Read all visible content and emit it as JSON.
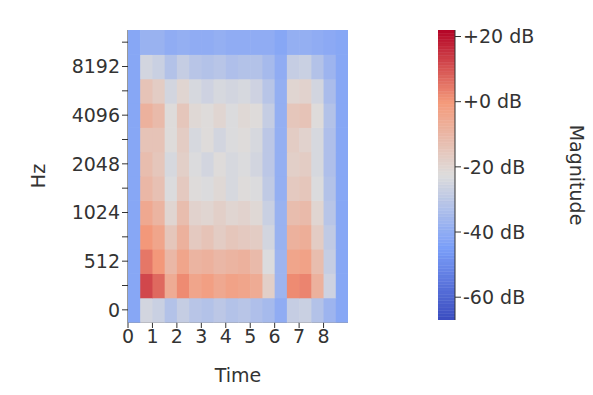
{
  "chart_data": {
    "type": "heatmap",
    "x_label": "Time",
    "y_label": "Hz",
    "x": [
      0.25,
      0.75,
      1.25,
      1.75,
      2.25,
      2.75,
      3.25,
      3.75,
      4.25,
      4.75,
      5.25,
      5.75,
      6.25,
      6.75,
      7.25,
      7.75,
      8.25,
      8.75
    ],
    "xlim": [
      0,
      9
    ],
    "xticks": [
      0,
      1,
      2,
      3,
      4,
      5,
      6,
      7,
      8
    ],
    "y_categories": [
      0,
      null,
      512,
      null,
      1024,
      null,
      2048,
      null,
      4096,
      null,
      8192,
      null
    ],
    "cells": [
      [
        -42,
        -25,
        -27,
        -32,
        -28,
        -31,
        -32,
        -30,
        -32,
        -31,
        -33,
        -35,
        -40,
        -28,
        -27,
        -32,
        -37,
        -42
      ],
      [
        -42,
        12,
        7,
        -6,
        2,
        -4,
        -2,
        -5,
        -3,
        -4,
        -6,
        -18,
        -37,
        2,
        3,
        -8,
        -26,
        -42
      ],
      [
        -42,
        5,
        0,
        -10,
        -4,
        -9,
        -8,
        -10,
        -9,
        -8,
        -11,
        -23,
        -37,
        -4,
        -3,
        -12,
        -28,
        -42
      ],
      [
        -42,
        0,
        -4,
        -15,
        -8,
        -16,
        -14,
        -17,
        -15,
        -16,
        -17,
        -25,
        -38,
        -8,
        -7,
        -17,
        -29,
        -42
      ],
      [
        -42,
        -5,
        -9,
        -20,
        -12,
        -19,
        -20,
        -18,
        -20,
        -19,
        -21,
        -27,
        -38,
        -12,
        -11,
        -20,
        -31,
        -42
      ],
      [
        -42,
        -10,
        -13,
        -23,
        -16,
        -22,
        -23,
        -21,
        -24,
        -22,
        -23,
        -29,
        -39,
        -16,
        -15,
        -23,
        -32,
        -42
      ],
      [
        -42,
        -12,
        -15,
        -24,
        -18,
        -23,
        -25,
        -22,
        -24,
        -23,
        -25,
        -30,
        -39,
        -18,
        -17,
        -24,
        -33,
        -42
      ],
      [
        -42,
        -14,
        -14,
        -22,
        -17,
        -24,
        -22,
        -25,
        -23,
        -22,
        -24,
        -30,
        -39,
        -17,
        -19,
        -24,
        -33,
        -42
      ],
      [
        -42,
        -8,
        -11,
        -22,
        -15,
        -21,
        -22,
        -20,
        -23,
        -21,
        -22,
        -28,
        -39,
        -15,
        -14,
        -22,
        -32,
        -42
      ],
      [
        -42,
        -14,
        -17,
        -25,
        -20,
        -24,
        -26,
        -24,
        -25,
        -24,
        -26,
        -31,
        -39,
        -20,
        -19,
        -25,
        -34,
        -42
      ],
      [
        -42,
        -25,
        -27,
        -32,
        -28,
        -31,
        -32,
        -31,
        -33,
        -32,
        -32,
        -35,
        -40,
        -28,
        -27,
        -32,
        -37,
        -42
      ],
      [
        -42,
        -38,
        -38,
        -40,
        -39,
        -40,
        -40,
        -39,
        -40,
        -40,
        -40,
        -40,
        -42,
        -39,
        -39,
        -40,
        -41,
        -42
      ]
    ],
    "colorbar_label": "Magnitude",
    "colorbar_lim": [
      -67,
      22
    ],
    "colorbar_ticks": [
      {
        "value": 20,
        "label": "+20 dB"
      },
      {
        "value": 0,
        "label": "+0 dB"
      },
      {
        "value": -20,
        "label": "-20 dB"
      },
      {
        "value": -40,
        "label": "-40 dB"
      },
      {
        "value": -60,
        "label": "-60 dB"
      }
    ]
  }
}
